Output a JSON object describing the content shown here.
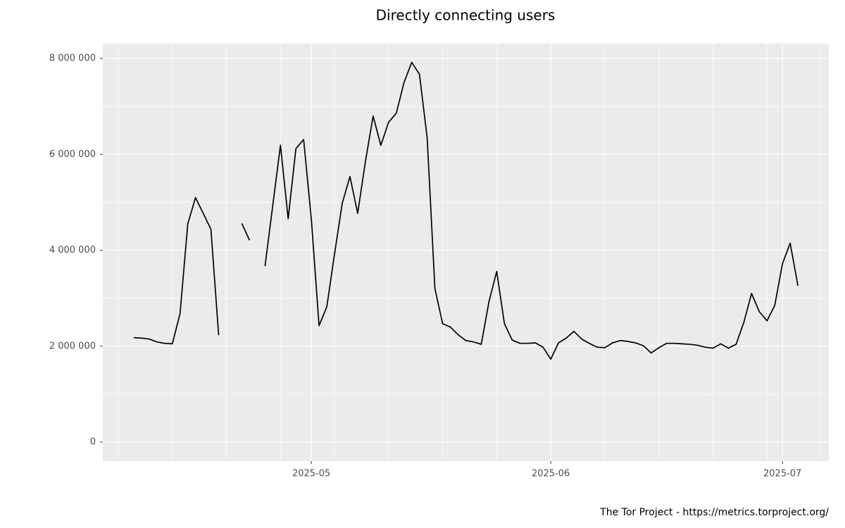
{
  "chart_data": {
    "type": "line",
    "title": "Directly connecting users",
    "caption": "The Tor Project - https://metrics.torproject.org/",
    "x": [
      "2025-04-08",
      "2025-04-09",
      "2025-04-10",
      "2025-04-11",
      "2025-04-12",
      "2025-04-13",
      "2025-04-14",
      "2025-04-15",
      "2025-04-16",
      "2025-04-17",
      "2025-04-18",
      "2025-04-19",
      "2025-04-20",
      "2025-04-21",
      "2025-04-22",
      "2025-04-23",
      "2025-04-24",
      "2025-04-25",
      "2025-04-26",
      "2025-04-27",
      "2025-04-28",
      "2025-04-29",
      "2025-04-30",
      "2025-05-01",
      "2025-05-02",
      "2025-05-03",
      "2025-05-04",
      "2025-05-05",
      "2025-05-06",
      "2025-05-07",
      "2025-05-08",
      "2025-05-09",
      "2025-05-10",
      "2025-05-11",
      "2025-05-12",
      "2025-05-13",
      "2025-05-14",
      "2025-05-15",
      "2025-05-16",
      "2025-05-17",
      "2025-05-18",
      "2025-05-19",
      "2025-05-20",
      "2025-05-21",
      "2025-05-22",
      "2025-05-23",
      "2025-05-24",
      "2025-05-25",
      "2025-05-26",
      "2025-05-27",
      "2025-05-28",
      "2025-05-29",
      "2025-05-30",
      "2025-05-31",
      "2025-06-01",
      "2025-06-02",
      "2025-06-03",
      "2025-06-04",
      "2025-06-05",
      "2025-06-06",
      "2025-06-07",
      "2025-06-08",
      "2025-06-09",
      "2025-06-10",
      "2025-06-11",
      "2025-06-12",
      "2025-06-13",
      "2025-06-14",
      "2025-06-15",
      "2025-06-16",
      "2025-06-17",
      "2025-06-18",
      "2025-06-19",
      "2025-06-20",
      "2025-06-21",
      "2025-06-22",
      "2025-06-23",
      "2025-06-24",
      "2025-06-25",
      "2025-06-26",
      "2025-06-27",
      "2025-06-28",
      "2025-06-29",
      "2025-06-30",
      "2025-07-01",
      "2025-07-02",
      "2025-07-03"
    ],
    "series": [
      {
        "name": "users",
        "color": "#000000",
        "values": [
          2180000,
          2170000,
          2150000,
          2090000,
          2060000,
          2050000,
          2680000,
          4550000,
          5100000,
          4770000,
          4440000,
          2230000,
          null,
          null,
          4560000,
          4210000,
          null,
          3670000,
          4930000,
          6190000,
          4660000,
          6120000,
          6310000,
          4650000,
          2430000,
          2820000,
          3920000,
          4980000,
          5540000,
          4770000,
          5850000,
          6800000,
          6190000,
          6670000,
          6860000,
          7500000,
          7920000,
          7670000,
          6340000,
          3200000,
          2470000,
          2400000,
          2240000,
          2120000,
          2090000,
          2040000,
          2930000,
          3560000,
          2470000,
          2130000,
          2060000,
          2060000,
          2070000,
          1980000,
          1730000,
          2070000,
          2170000,
          2310000,
          2150000,
          2060000,
          1980000,
          1970000,
          2070000,
          2120000,
          2100000,
          2070000,
          2010000,
          1860000,
          1970000,
          2060000,
          2060000,
          2050000,
          2040000,
          2020000,
          1980000,
          1960000,
          2050000,
          1960000,
          2040000,
          2500000,
          3100000,
          2720000,
          2530000,
          2850000,
          3720000,
          4150000,
          3260000
        ]
      }
    ],
    "xlim": [
      "2025-04-04",
      "2025-07-07"
    ],
    "xticks": [
      {
        "value": "2025-05-01",
        "label": "2025-05"
      },
      {
        "value": "2025-06-01",
        "label": "2025-06"
      },
      {
        "value": "2025-07-01",
        "label": "2025-07"
      }
    ],
    "x_minor_grid": [
      "2025-04-06",
      "2025-04-13",
      "2025-04-20",
      "2025-04-27",
      "2025-05-04",
      "2025-05-11",
      "2025-05-18",
      "2025-05-25",
      "2025-06-08",
      "2025-06-15",
      "2025-06-22",
      "2025-06-29",
      "2025-07-06"
    ],
    "ylim": [
      -396000,
      8310000
    ],
    "yticks": [
      {
        "value": 0,
        "label": "0"
      },
      {
        "value": 2000000,
        "label": "2 000 000"
      },
      {
        "value": 4000000,
        "label": "4 000 000"
      },
      {
        "value": 6000000,
        "label": "6 000 000"
      },
      {
        "value": 8000000,
        "label": "8 000 000"
      }
    ],
    "grid": true
  }
}
